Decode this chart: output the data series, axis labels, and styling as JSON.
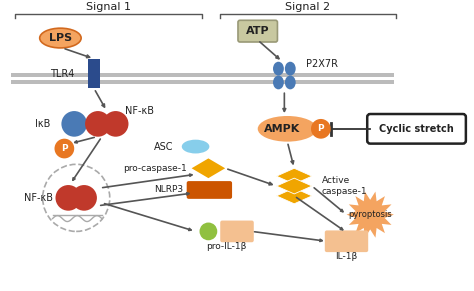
{
  "figsize": [
    4.74,
    2.91
  ],
  "dpi": 100,
  "bg_color": "#ffffff",
  "colors": {
    "lps_fill": "#F4A460",
    "lps_edge": "#D2691E",
    "atp_fill": "#C8C8A0",
    "atp_edge": "#999977",
    "tlr4_fill": "#2B4B8C",
    "p2x7r_fill": "#4A7AB5",
    "blue_circle": "#4A7AB5",
    "red_circle": "#C0392B",
    "orange_circle": "#E87722",
    "ampk_fill": "#F4A460",
    "ampk_p_fill": "#E87722",
    "asc_fill": "#87CEEB",
    "pro_casp1_fill": "#F0A500",
    "nlrp3_fill": "#CC5500",
    "active_casp1_fill": "#F0A500",
    "pro_il1b_circle": "#90C040",
    "pro_il1b_rect": "#F4C090",
    "il1b_rect": "#F4C090",
    "pyroptosis_fill": "#F4A460",
    "arrow_color": "#555555",
    "membrane_color": "#BBBBBB",
    "dashed_circle": "#AAAAAA",
    "cyclic_box_fill": "#ffffff",
    "cyclic_box_edge": "#222222"
  },
  "texts": {
    "signal1": "Signal 1",
    "signal2": "Signal 2",
    "lps": "LPS",
    "atp": "ATP",
    "tlr4": "TLR4",
    "p2x7r": "P2X7R",
    "ikb": "IκB",
    "nfkb_top": "NF-κB",
    "nfkb_bottom": "NF-κB",
    "ampk": "AMPK",
    "p": "P",
    "asc": "ASC",
    "pro_caspase1": "pro-caspase-1",
    "nlrp3": "NLRP3",
    "active_caspase1": "Active\ncaspase-1",
    "pyroptosis": "pyroptosis",
    "pro_il1b": "pro-IL-1β",
    "il1b": "IL-1β",
    "cyclic_stretch": "Cyclic stretch"
  }
}
